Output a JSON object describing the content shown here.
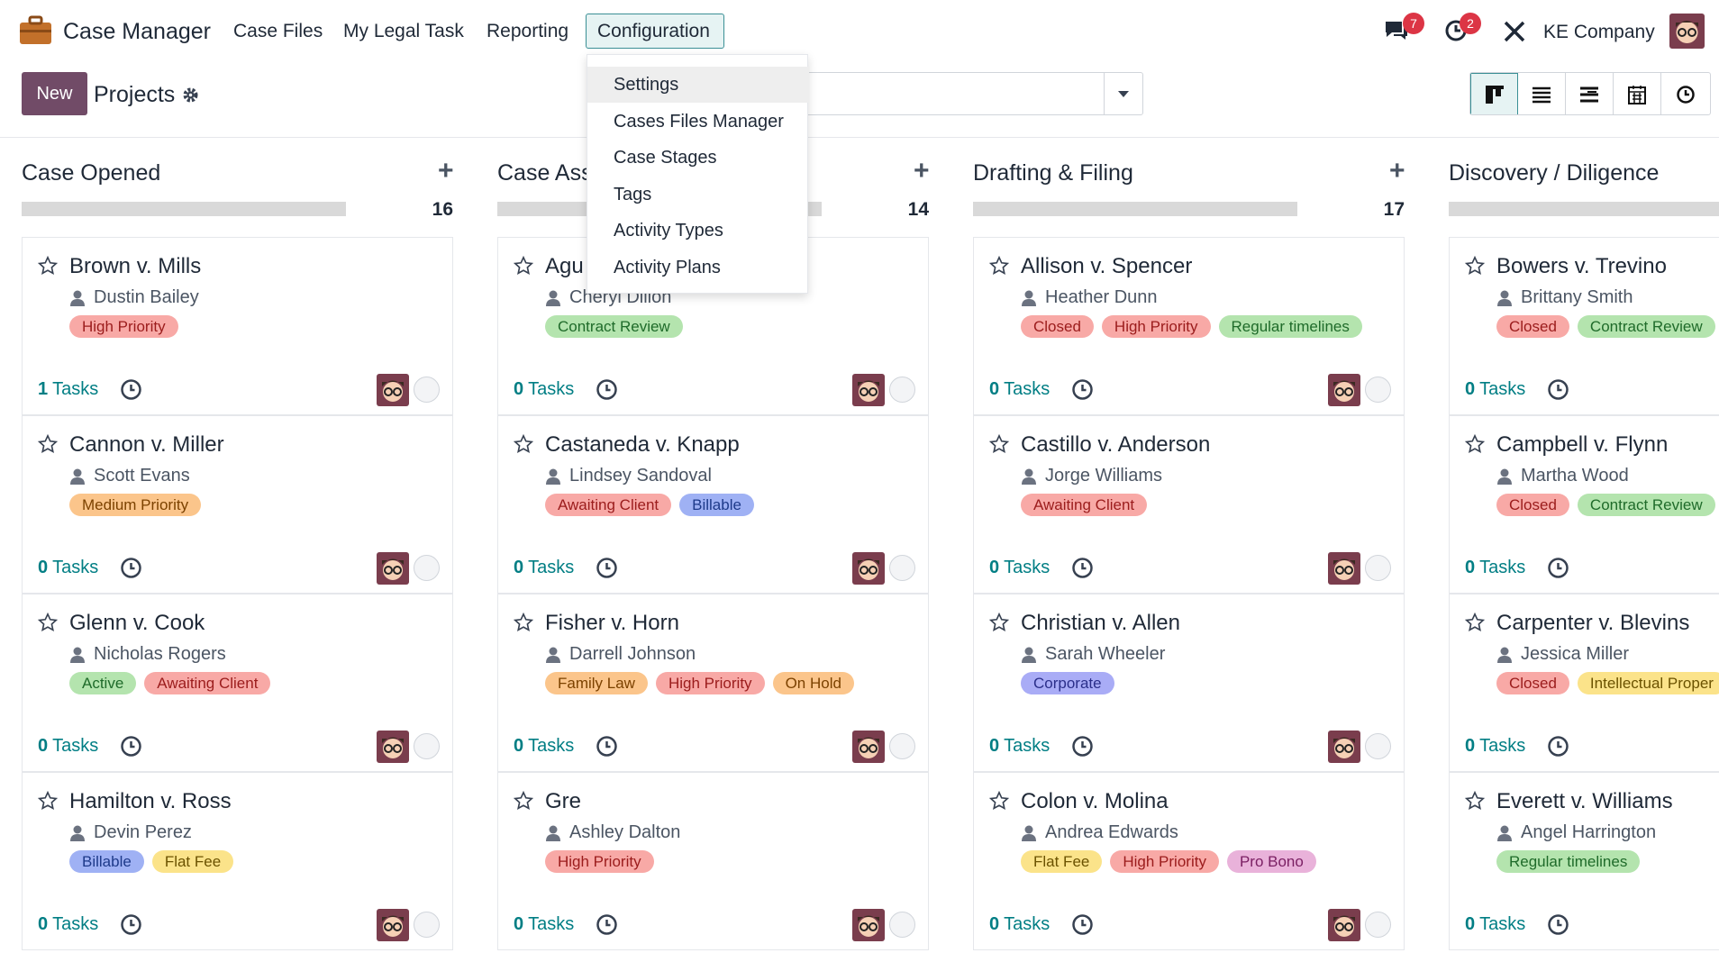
{
  "nav": {
    "app_name": "Case Manager",
    "menu": [
      "Case Files",
      "My Legal Task",
      "Reporting",
      "Configuration"
    ],
    "messages_badge": 7,
    "activities_badge": 2,
    "company": "KE Company"
  },
  "control": {
    "new_button": "New",
    "breadcrumb": "Projects"
  },
  "dropdown": [
    "Settings",
    "Cases Files Manager",
    "Case Stages",
    "Tags",
    "Activity Types",
    "Activity Plans"
  ],
  "tasks_label": "Tasks",
  "columns": [
    {
      "title": "Case Opened",
      "count": 16,
      "cards": [
        {
          "title": "Brown v. Mills",
          "person": "Dustin Bailey",
          "tags": [
            {
              "name": "High Priority",
              "color": "red"
            }
          ],
          "tasks": 1
        },
        {
          "title": "Cannon v. Miller",
          "person": "Scott Evans",
          "tags": [
            {
              "name": "Medium Priority",
              "color": "orange"
            }
          ],
          "tasks": 0
        },
        {
          "title": "Glenn v. Cook",
          "person": "Nicholas Rogers",
          "tags": [
            {
              "name": "Active",
              "color": "green"
            },
            {
              "name": "Awaiting Client",
              "color": "red"
            }
          ],
          "tasks": 0
        },
        {
          "title": "Hamilton v. Ross",
          "person": "Devin Perez",
          "tags": [
            {
              "name": "Billable",
              "color": "blue"
            },
            {
              "name": "Flat Fee",
              "color": "yellow"
            }
          ],
          "tasks": 0
        }
      ]
    },
    {
      "title": "Case Ass",
      "count": 14,
      "cards": [
        {
          "title": "Agu",
          "person": "Cheryl Dillon",
          "tags": [
            {
              "name": "Contract Review",
              "color": "green"
            }
          ],
          "tasks": 0
        },
        {
          "title": "Castaneda v. Knapp",
          "person": "Lindsey Sandoval",
          "tags": [
            {
              "name": "Awaiting Client",
              "color": "red"
            },
            {
              "name": "Billable",
              "color": "blue"
            }
          ],
          "tasks": 0
        },
        {
          "title": "Fisher v. Horn",
          "person": "Darrell Johnson",
          "tags": [
            {
              "name": "Family Law",
              "color": "orange"
            },
            {
              "name": "High Priority",
              "color": "red"
            },
            {
              "name": "On Hold",
              "color": "orange"
            }
          ],
          "tasks": 0
        },
        {
          "title": "Gre",
          "person": "Ashley Dalton",
          "tags": [
            {
              "name": "High Priority",
              "color": "red"
            }
          ],
          "tasks": 0
        }
      ]
    },
    {
      "title": "Drafting & Filing",
      "count": 17,
      "cards": [
        {
          "title": "Allison v. Spencer",
          "person": "Heather Dunn",
          "tags": [
            {
              "name": "Closed",
              "color": "red"
            },
            {
              "name": "High Priority",
              "color": "red"
            },
            {
              "name": "Regular timelines",
              "color": "green"
            }
          ],
          "tasks": 0
        },
        {
          "title": "Castillo v. Anderson",
          "person": "Jorge Williams",
          "tags": [
            {
              "name": "Awaiting Client",
              "color": "red"
            }
          ],
          "tasks": 0
        },
        {
          "title": "Christian v. Allen",
          "person": "Sarah Wheeler",
          "tags": [
            {
              "name": "Corporate",
              "color": "indigo"
            }
          ],
          "tasks": 0
        },
        {
          "title": "Colon v. Molina",
          "person": "Andrea Edwards",
          "tags": [
            {
              "name": "Flat Fee",
              "color": "yellow"
            },
            {
              "name": "High Priority",
              "color": "red"
            },
            {
              "name": "Pro Bono",
              "color": "purple"
            }
          ],
          "tasks": 0
        }
      ]
    },
    {
      "title": "Discovery / Diligence",
      "cards": [
        {
          "title": "Bowers v. Trevino",
          "person": "Brittany Smith",
          "tags": [
            {
              "name": "Closed",
              "color": "red"
            },
            {
              "name": "Contract Review",
              "color": "green"
            }
          ],
          "tasks": 0
        },
        {
          "title": "Campbell v. Flynn",
          "person": "Martha Wood",
          "tags": [
            {
              "name": "Closed",
              "color": "red"
            },
            {
              "name": "Contract Review",
              "color": "green"
            }
          ],
          "tasks": 0
        },
        {
          "title": "Carpenter v. Blevins",
          "person": "Jessica Miller",
          "tags": [
            {
              "name": "Closed",
              "color": "red"
            },
            {
              "name": "Intellectual Proper",
              "color": "yellow"
            }
          ],
          "tasks": 0
        },
        {
          "title": "Everett v. Williams",
          "person": "Angel Harrington",
          "tags": [
            {
              "name": "Regular timelines",
              "color": "green"
            }
          ],
          "tasks": 0
        }
      ]
    }
  ]
}
